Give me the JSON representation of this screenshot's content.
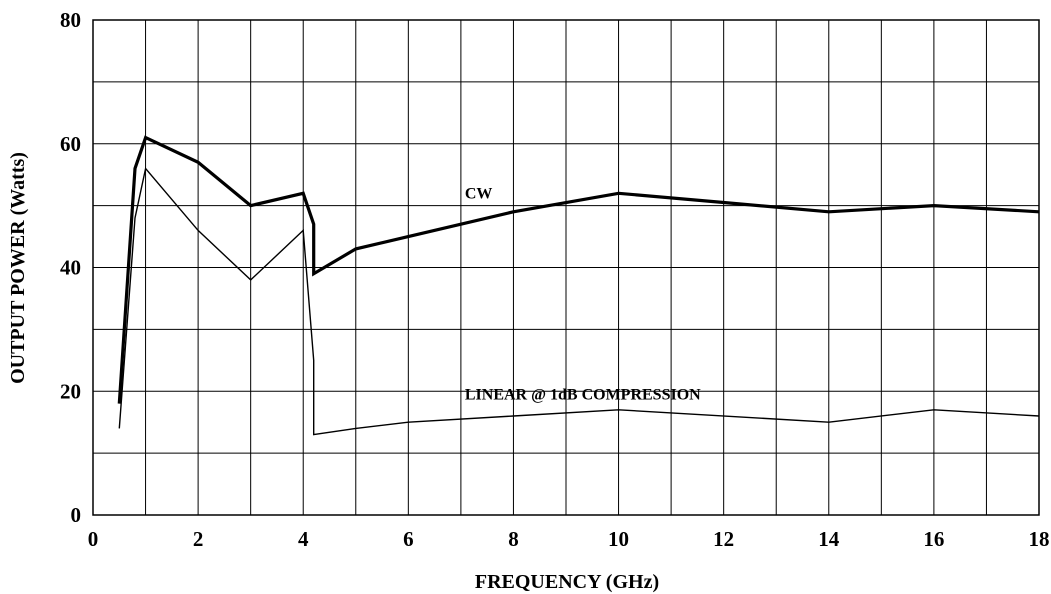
{
  "chart_data": {
    "type": "line",
    "title": "",
    "xlabel": "FREQUENCY (GHz)",
    "ylabel": "OUTPUT POWER (Watts)",
    "xlim": [
      0,
      18
    ],
    "ylim": [
      0,
      80
    ],
    "xticks": [
      0,
      2,
      4,
      6,
      8,
      10,
      12,
      14,
      16,
      18
    ],
    "yticks": [
      0,
      20,
      40,
      60,
      80
    ],
    "x_gridlines": [
      0,
      1,
      2,
      3,
      4,
      5,
      6,
      7,
      8,
      9,
      10,
      11,
      12,
      13,
      14,
      15,
      16,
      17,
      18
    ],
    "y_gridlines": [
      0,
      10,
      20,
      30,
      40,
      50,
      60,
      70,
      80
    ],
    "grid": true,
    "legend": "none",
    "series": [
      {
        "name": "CW",
        "label_position": {
          "x": 7.0,
          "y": 52
        },
        "color": "#000000",
        "weight": "thick",
        "points": [
          [
            0.5,
            18
          ],
          [
            0.8,
            56
          ],
          [
            1.0,
            61
          ],
          [
            2.0,
            57
          ],
          [
            3.0,
            50
          ],
          [
            4.0,
            52
          ],
          [
            4.2,
            47
          ],
          [
            4.2,
            39
          ],
          [
            5.0,
            43
          ],
          [
            6.0,
            45
          ],
          [
            8.0,
            49
          ],
          [
            10.0,
            52
          ],
          [
            12.0,
            50.5
          ],
          [
            14.0,
            49
          ],
          [
            16.0,
            50
          ],
          [
            18.0,
            49
          ]
        ]
      },
      {
        "name": "LINEAR @ 1dB COMPRESSION",
        "label_position": {
          "x": 7.0,
          "y": 19.5
        },
        "color": "#000000",
        "weight": "thin",
        "points": [
          [
            0.5,
            14
          ],
          [
            0.8,
            48
          ],
          [
            1.0,
            56
          ],
          [
            2.0,
            46
          ],
          [
            3.0,
            38
          ],
          [
            4.0,
            46
          ],
          [
            4.2,
            25
          ],
          [
            4.2,
            13
          ],
          [
            5.0,
            14
          ],
          [
            6.0,
            15
          ],
          [
            8.0,
            16
          ],
          [
            10.0,
            17
          ],
          [
            14.0,
            15
          ],
          [
            16.0,
            17
          ],
          [
            18.0,
            16
          ]
        ]
      }
    ]
  }
}
